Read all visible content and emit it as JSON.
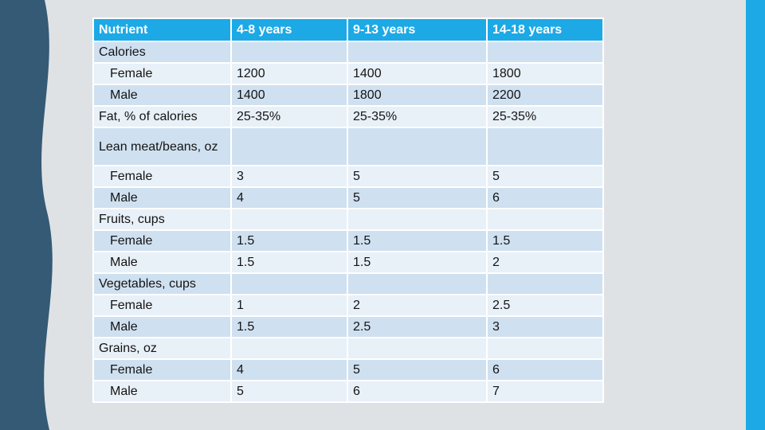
{
  "colors": {
    "header": "#1ca9e6",
    "row_shade_a": "#cfe0f0",
    "row_shade_b": "#e8f0f8",
    "left_band": "#345a75",
    "right_band": "#1ca9e6"
  },
  "table": {
    "columns": [
      "Nutrient",
      "4-8 years",
      "9-13 years",
      "14-18 years"
    ],
    "rows": [
      {
        "label": "Calories",
        "indent": false,
        "values": [
          "",
          "",
          ""
        ]
      },
      {
        "label": "Female",
        "indent": true,
        "values": [
          "1200",
          "1400",
          "1800"
        ]
      },
      {
        "label": "Male",
        "indent": true,
        "values": [
          "1400",
          "1800",
          "2200"
        ]
      },
      {
        "label": "Fat, % of calories",
        "indent": false,
        "values": [
          "25-35%",
          "25-35%",
          "25-35%"
        ]
      },
      {
        "label": "Lean meat/beans, oz",
        "indent": false,
        "values": [
          "",
          "",
          ""
        ]
      },
      {
        "label": "Female",
        "indent": true,
        "values": [
          "3",
          "5",
          "5"
        ]
      },
      {
        "label": "Male",
        "indent": true,
        "values": [
          "4",
          "5",
          "6"
        ]
      },
      {
        "label": "Fruits, cups",
        "indent": false,
        "values": [
          "",
          "",
          ""
        ]
      },
      {
        "label": "Female",
        "indent": true,
        "values": [
          "1.5",
          "1.5",
          "1.5"
        ]
      },
      {
        "label": "Male",
        "indent": true,
        "values": [
          "1.5",
          "1.5",
          "2"
        ]
      },
      {
        "label": "Vegetables,  cups",
        "indent": false,
        "values": [
          "",
          "",
          ""
        ]
      },
      {
        "label": "Female",
        "indent": true,
        "values": [
          "1",
          "2",
          "2.5"
        ]
      },
      {
        "label": "Male",
        "indent": true,
        "values": [
          "1.5",
          "2.5",
          "3"
        ]
      },
      {
        "label": "Grains, oz",
        "indent": false,
        "values": [
          "",
          "",
          ""
        ]
      },
      {
        "label": "Female",
        "indent": true,
        "values": [
          "4",
          "5",
          "6"
        ]
      },
      {
        "label": "Male",
        "indent": true,
        "values": [
          "5",
          "6",
          "7"
        ]
      }
    ]
  }
}
